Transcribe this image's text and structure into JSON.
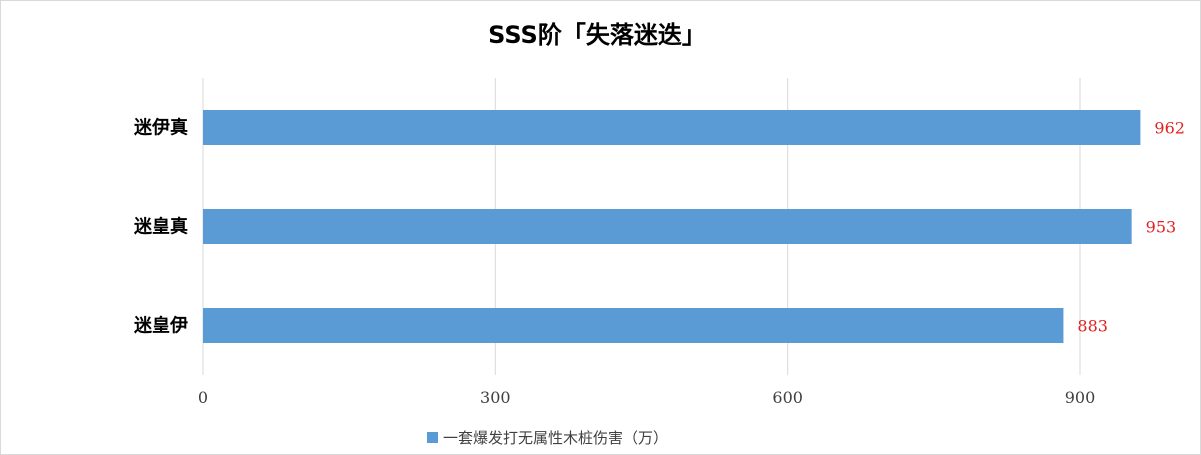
{
  "chart_data": {
    "type": "bar",
    "orientation": "horizontal",
    "title": "SSS阶「失落迷迭」",
    "categories": [
      "迷伊真",
      "迷皇真",
      "迷皇伊"
    ],
    "series": [
      {
        "name": "一套爆发打无属性木桩伤害（万）",
        "values": [
          962,
          953,
          883
        ]
      }
    ],
    "xlim": [
      0,
      960
    ],
    "xticks": [
      0,
      300,
      600,
      900
    ],
    "grid": true,
    "legend_position": "bottom",
    "colors": {
      "bar": "#5B9BD5",
      "data_label": "#E02020",
      "grid": "#d9d9d9",
      "axis_text": "#404040"
    }
  }
}
